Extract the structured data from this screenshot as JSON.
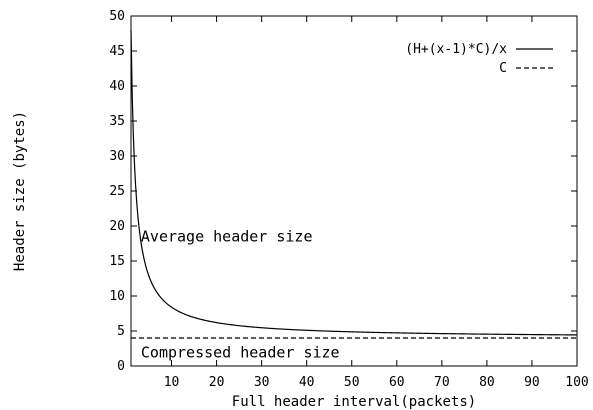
{
  "chart_data": {
    "type": "line",
    "xlabel": "Full header interval(packets)",
    "ylabel": "Header size (bytes)",
    "xlim": [
      1,
      100
    ],
    "ylim": [
      0,
      50
    ],
    "xticks": [
      10,
      20,
      30,
      40,
      50,
      60,
      70,
      80,
      90,
      100
    ],
    "yticks": [
      0,
      5,
      10,
      15,
      20,
      25,
      30,
      35,
      40,
      45,
      50
    ],
    "grid": false,
    "legend_position": "top-right",
    "series": [
      {
        "name": "(H+(x-1)*C)/x",
        "style": "solid",
        "formula": "(H+(x-1)*C)/x",
        "H": 48,
        "C": 4,
        "x": [
          1,
          2,
          3,
          4,
          5,
          6,
          7,
          8,
          10,
          12,
          15,
          20,
          25,
          30,
          40,
          50,
          60,
          70,
          80,
          90,
          100
        ],
        "y": [
          48,
          26,
          18.67,
          15,
          12.8,
          11.33,
          10.29,
          9.5,
          8.4,
          7.67,
          6.93,
          6.2,
          5.76,
          5.47,
          5.1,
          4.88,
          4.73,
          4.63,
          4.55,
          4.49,
          4.44
        ]
      },
      {
        "name": "C",
        "style": "dashed",
        "x": [
          1,
          100
        ],
        "y": [
          4,
          4
        ]
      }
    ],
    "annotations": [
      {
        "text": "Average header size",
        "x": 3.2,
        "y": 17.8
      },
      {
        "text": "Compressed header size",
        "x": 3.2,
        "y": 1.2
      }
    ]
  }
}
